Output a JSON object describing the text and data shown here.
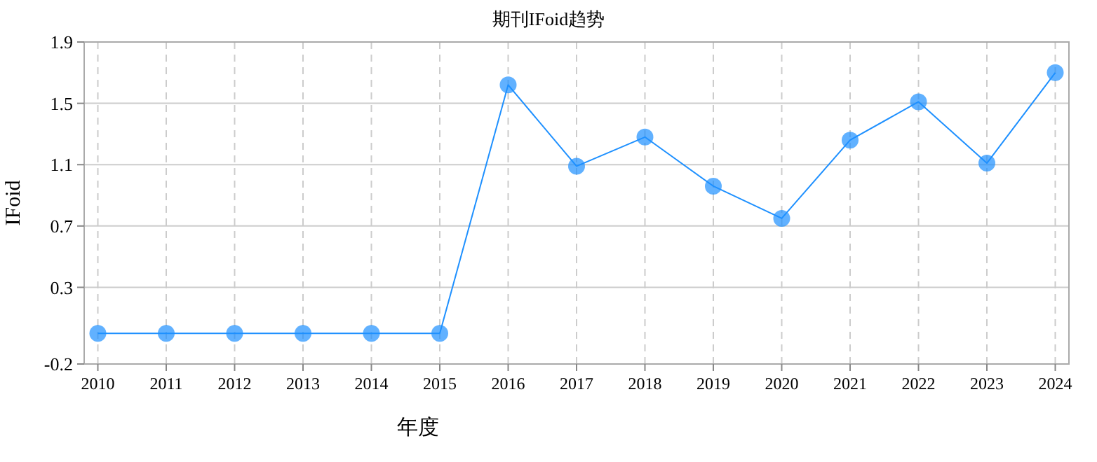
{
  "chart_data": {
    "type": "line",
    "title": "期刊IFoid趋势",
    "xlabel": "年度",
    "ylabel": "IFoid",
    "categories": [
      "2010",
      "2011",
      "2012",
      "2013",
      "2014",
      "2015",
      "2016",
      "2017",
      "2018",
      "2019",
      "2020",
      "2021",
      "2022",
      "2023",
      "2024"
    ],
    "series": [
      {
        "color": "#1e90ff",
        "values": [
          0,
          0,
          0,
          0,
          0,
          0,
          1.62,
          1.09,
          1.28,
          0.96,
          0.75,
          1.26,
          1.51,
          1.11,
          1.7
        ]
      }
    ],
    "ylim": [
      -0.2,
      1.9
    ],
    "yticks": [
      -0.2,
      0.3,
      0.7,
      1.1,
      1.5,
      1.9
    ],
    "grid": true,
    "marker": "circle",
    "line_style": "solid"
  }
}
